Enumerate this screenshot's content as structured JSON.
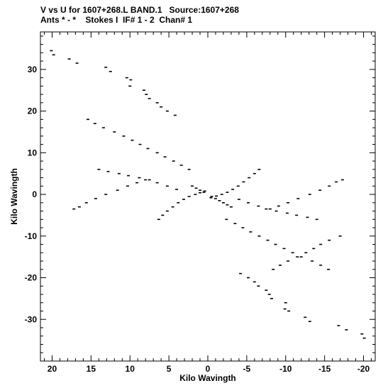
{
  "chart_data": {
    "type": "scatter",
    "title": "V vs U for 1607+268.L BAND.1   Source:1607+268",
    "subtitle": "Ants * - *    Stokes I  IF# 1 - 2  Chan# 1",
    "xlabel": "Kilo Wavingth",
    "ylabel": "Kilo Wavingth",
    "xlim": [
      21.5,
      -21.5
    ],
    "ylim": [
      -40,
      39
    ],
    "x_inverted": true,
    "grid": false,
    "legend": "none",
    "x_ticks": [
      20,
      15,
      10,
      5,
      0,
      -5,
      -10,
      -15,
      -20
    ],
    "x_tick_labels": [
      "20",
      "15",
      "10",
      "5",
      "0",
      "-5",
      "-10",
      "-15",
      "-20"
    ],
    "y_ticks": [
      30,
      20,
      10,
      0,
      -10,
      -20,
      -30
    ],
    "y_tick_labels": [
      "30",
      "20",
      "10",
      "0",
      "-10",
      "-20",
      "-30"
    ],
    "marker_color": "#000000",
    "series": [
      {
        "values_note": "",
        "x": [
          20.1,
          19.8,
          17.8,
          16.8,
          13.1,
          12.5,
          10.4,
          9.9,
          10.0,
          8.2,
          7.9,
          7.5,
          6.5,
          6.0,
          5.2,
          4.2,
          15.4,
          14.5,
          13.4,
          12.0,
          10.8,
          9.7,
          8.7,
          7.7,
          6.5,
          5.5,
          4.4,
          3.4,
          2.4,
          17.2,
          16.5,
          15.6,
          14.4,
          13.1,
          11.6,
          10.3,
          9.1,
          8.0,
          14.0,
          12.8,
          11.4,
          10.2,
          8.8,
          7.5,
          6.5,
          5.2,
          4.0,
          6.3,
          5.8,
          5.2,
          4.5,
          3.8,
          3.1,
          2.4,
          1.6,
          1.0,
          0.4,
          -0.4,
          -1.1,
          -1.8,
          -2.5,
          -3.2,
          -3.9,
          -4.6,
          -5.3,
          -6.0,
          -6.6,
          -8.4,
          -9.3,
          -10.3,
          -11.5,
          -12.6,
          -13.6,
          -14.5,
          -15.6,
          -17.0,
          -2.4,
          -3.5,
          -4.5,
          -5.5,
          -6.6,
          -7.7,
          -8.7,
          -9.8,
          -10.9,
          -12.0,
          -13.4,
          -14.5,
          -15.5,
          -4.0,
          -5.2,
          -6.5,
          -7.5,
          -8.8,
          -10.2,
          -11.4,
          -12.8,
          -14.0,
          -8.0,
          -9.1,
          -10.3,
          -11.6,
          -13.1,
          -14.4,
          -15.6,
          -16.5,
          -17.3,
          -4.2,
          -5.2,
          -6.0,
          -6.5,
          -7.5,
          -7.9,
          -8.2,
          -10.0,
          -9.9,
          -10.4,
          -12.5,
          -13.1,
          -16.8,
          -17.8,
          -19.8,
          -20.1,
          2.0,
          1.5,
          1.0,
          0.5,
          -0.5,
          -1.0,
          -1.5,
          -2.0,
          -2.5,
          -3.0
        ],
        "y": [
          34.5,
          33.5,
          32.5,
          31.5,
          30.5,
          29.5,
          28.0,
          27.5,
          26.0,
          25.0,
          24.0,
          23.0,
          22.0,
          21.0,
          20.0,
          19.0,
          18.0,
          17.0,
          16.0,
          15.0,
          14.0,
          13.0,
          12.0,
          11.0,
          10.0,
          9.0,
          8.0,
          7.0,
          6.0,
          -3.5,
          -3.0,
          -2.0,
          -1.0,
          0.0,
          1.0,
          2.0,
          2.8,
          3.5,
          6.0,
          5.5,
          5.0,
          4.5,
          4.0,
          3.5,
          2.8,
          2.0,
          1.2,
          -6.0,
          -5.0,
          -4.0,
          -3.0,
          -2.0,
          -1.2,
          -0.5,
          0.0,
          0.4,
          0.8,
          -0.8,
          -0.4,
          0.0,
          0.5,
          1.2,
          2.0,
          3.0,
          4.0,
          5.0,
          6.0,
          -18.0,
          -17.0,
          -16.0,
          -15.0,
          -14.0,
          -13.0,
          -12.0,
          -11.0,
          -10.0,
          -6.0,
          -7.0,
          -8.0,
          -9.0,
          -10.0,
          -11.0,
          -12.0,
          -13.0,
          -14.0,
          -15.0,
          -16.0,
          -17.0,
          -18.0,
          -1.2,
          -2.0,
          -2.8,
          -3.5,
          -4.0,
          -4.5,
          -5.0,
          -5.5,
          -6.0,
          -3.5,
          -2.8,
          -2.0,
          -1.0,
          0.0,
          1.0,
          2.0,
          3.0,
          3.5,
          -19.0,
          -20.0,
          -21.0,
          -22.0,
          -23.0,
          -24.0,
          -25.0,
          -26.0,
          -27.5,
          -28.0,
          -29.5,
          -30.5,
          -31.5,
          -32.5,
          -33.5,
          -34.5,
          2.0,
          1.5,
          1.0,
          0.5,
          -0.5,
          -1.0,
          -1.5,
          -2.0,
          -2.5,
          -3.0
        ]
      }
    ]
  }
}
